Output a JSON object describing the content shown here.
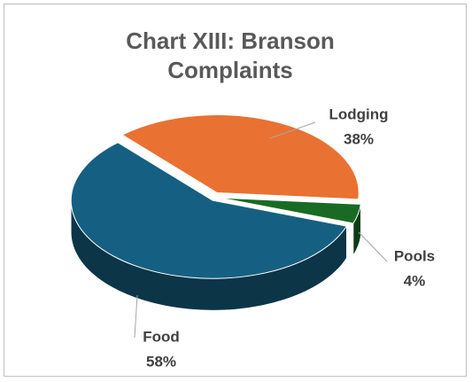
{
  "chart_data": {
    "type": "pie3d",
    "title": "Chart XIII: Branson Complaints",
    "categories": [
      "Lodging",
      "Pools",
      "Food"
    ],
    "values": [
      38,
      4,
      58
    ],
    "value_labels": [
      "38%",
      "4%",
      "58%"
    ],
    "colors": [
      "#e97132",
      "#196b24",
      "#156082"
    ]
  }
}
